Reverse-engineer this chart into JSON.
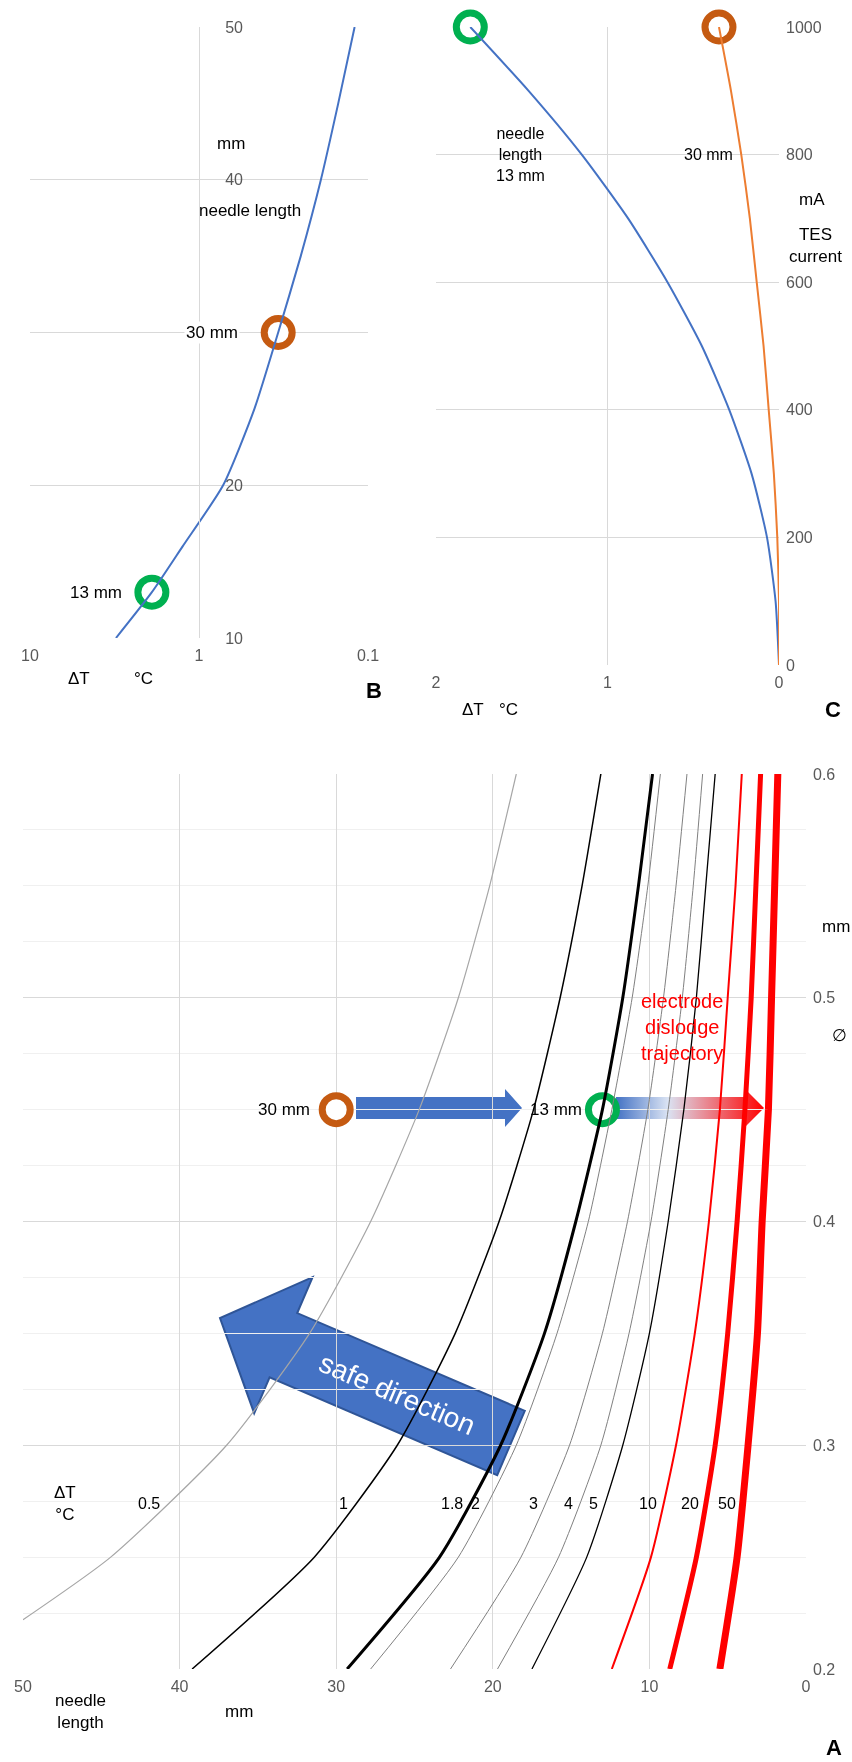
{
  "chart_data": [
    {
      "type": "line",
      "title": "A",
      "xlabel": "needle\nlength",
      "ylabel": "mm",
      "legend_title": "ΔT\n°C",
      "xlim": [
        50,
        0
      ],
      "xticks": [
        0,
        10,
        20,
        30,
        40,
        50
      ],
      "ylim": [
        0.2,
        0.6
      ],
      "yticks": [
        0.2,
        0.3,
        0.4,
        0.5,
        0.6
      ],
      "grid": true,
      "series": [
        {
          "name": "0.5",
          "color": "#a6a6a6",
          "x": [
            50,
            44.4,
            37,
            31.7,
            27.8,
            24.7,
            22.2,
            20.2,
            18.5
          ],
          "values": [
            0.222,
            0.25,
            0.3,
            0.35,
            0.4,
            0.45,
            0.5,
            0.55,
            0.6
          ]
        },
        {
          "name": "1",
          "color": "#000000",
          "x": [
            39.2,
            31.4,
            26.1,
            22.4,
            19.6,
            17.4,
            15.7,
            14.3,
            13.1
          ],
          "values": [
            0.2,
            0.25,
            0.3,
            0.35,
            0.4,
            0.45,
            0.5,
            0.55,
            0.6
          ]
        },
        {
          "name": "1.8",
          "color": "#000000",
          "x": [
            29.3,
            23.4,
            19.5,
            16.7,
            14.7,
            13,
            11.7,
            10.7,
            9.8
          ],
          "values": [
            0.2,
            0.25,
            0.3,
            0.35,
            0.4,
            0.45,
            0.5,
            0.55,
            0.6
          ]
        },
        {
          "name": "2",
          "color": "#808080",
          "x": [
            27.8,
            22.2,
            18.5,
            15.9,
            13.9,
            12.4,
            11.1,
            10.1,
            9.3
          ],
          "values": [
            0.2,
            0.25,
            0.3,
            0.35,
            0.4,
            0.45,
            0.5,
            0.55,
            0.6
          ]
        },
        {
          "name": "3",
          "color": "#808080",
          "x": [
            22.7,
            18.2,
            15.1,
            13,
            11.4,
            10.1,
            9.1,
            8.3,
            7.6
          ],
          "values": [
            0.2,
            0.25,
            0.3,
            0.35,
            0.4,
            0.45,
            0.5,
            0.55,
            0.6
          ]
        },
        {
          "name": "4",
          "color": "#808080",
          "x": [
            19.7,
            15.8,
            13.1,
            11.3,
            9.9,
            8.8,
            7.9,
            7.2,
            6.6
          ],
          "values": [
            0.2,
            0.25,
            0.3,
            0.35,
            0.4,
            0.45,
            0.5,
            0.55,
            0.6
          ]
        },
        {
          "name": "5",
          "color": "#000000",
          "x": [
            17.5,
            14,
            11.7,
            10,
            8.8,
            7.8,
            7,
            6.4,
            5.8
          ],
          "values": [
            0.2,
            0.25,
            0.3,
            0.35,
            0.4,
            0.45,
            0.5,
            0.55,
            0.6
          ]
        },
        {
          "name": "10",
          "color": "#ff0000",
          "x": [
            12.4,
            9.9,
            8.3,
            7.1,
            6.2,
            5.5,
            5,
            4.5,
            4.1
          ],
          "values": [
            0.2,
            0.25,
            0.3,
            0.35,
            0.4,
            0.45,
            0.5,
            0.55,
            0.6
          ]
        },
        {
          "name": "20",
          "color": "#ff0000",
          "x": [
            8.7,
            7,
            5.8,
            5,
            4.4,
            3.9,
            3.5,
            3.2,
            2.9
          ],
          "values": [
            0.2,
            0.25,
            0.3,
            0.35,
            0.4,
            0.45,
            0.5,
            0.55,
            0.6
          ]
        },
        {
          "name": "50",
          "color": "#ff0000",
          "x": [
            5.5,
            4.4,
            3.7,
            3.1,
            2.8,
            2.4,
            2.2,
            2,
            1.8
          ],
          "values": [
            0.2,
            0.25,
            0.3,
            0.35,
            0.4,
            0.45,
            0.5,
            0.55,
            0.6
          ]
        },
        {
          "type": "scatter",
          "color": "#c55a11",
          "x": [
            30
          ],
          "values": [
            0.45
          ]
        },
        {
          "type": "scatter",
          "color": "#00b050",
          "x": [
            13
          ],
          "values": [
            0.45
          ]
        }
      ],
      "annotations": [
        "∅",
        "mm",
        {
          "text": "30 mm",
          "x": 30,
          "y": 0.45
        },
        {
          "text": "13 mm",
          "x": 13,
          "y": 0.45
        },
        "electrode\ndislodge\ntrajectory",
        "safe direction"
      ]
    },
    {
      "type": "line",
      "title": "B",
      "xlabel": "ΔT\n°C",
      "ylabel": "needle length",
      "log": "x",
      "xlim": [
        10,
        0.1
      ],
      "xticks": [
        0.1,
        1,
        10
      ],
      "ylim": [
        10,
        50
      ],
      "yticks": [
        10,
        20,
        {
          "value": 30,
          "label": null
        },
        40,
        50
      ],
      "grid": true,
      "series": [
        {
          "color": "#4472c4",
          "x": [
            3.1,
            1.9,
            1.25,
            0.72,
            0.47,
            0.34,
            0.25,
            0.19,
            0.15,
            0.12
          ],
          "values": [
            10,
            13,
            16,
            20,
            25,
            30,
            35,
            40,
            45,
            50
          ]
        },
        {
          "type": "scatter",
          "color": "#00b050",
          "x": [
            1.9
          ],
          "values": [
            13
          ]
        },
        {
          "type": "scatter",
          "color": "#c55a11",
          "x": [
            0.34
          ],
          "values": [
            30
          ]
        }
      ],
      "annotations": [
        "mm",
        {
          "text": "30 mm",
          "x": 0.34,
          "y": 30
        },
        {
          "text": "13 mm",
          "x": 1.9,
          "y": 13
        }
      ]
    },
    {
      "type": "line",
      "title": "C",
      "xlabel": "ΔT\n°C",
      "ylabel": "TES current",
      "xlim": [
        2,
        0
      ],
      "xticks": [
        0,
        1,
        2
      ],
      "ylim": [
        0,
        1000
      ],
      "yticks": [
        0,
        200,
        400,
        600,
        800,
        1000
      ],
      "grid": true,
      "series": [
        {
          "name": "needle\nlength\n13 mm",
          "color": "#4472c4",
          "x": [
            0,
            0.02,
            0.07,
            0.16,
            0.29,
            0.45,
            0.65,
            0.88,
            1.15,
            1.46,
            1.8
          ],
          "values": [
            0,
            100,
            200,
            300,
            400,
            500,
            600,
            700,
            800,
            900,
            1000
          ]
        },
        {
          "name": "30 mm",
          "color": "#ed7d31",
          "x": [
            0,
            0,
            0.01,
            0.03,
            0.06,
            0.09,
            0.13,
            0.17,
            0.22,
            0.28,
            0.35
          ],
          "values": [
            0,
            100,
            200,
            300,
            400,
            500,
            600,
            700,
            800,
            900,
            1000
          ]
        },
        {
          "type": "scatter",
          "color": "#00b050",
          "x": [
            1.8
          ],
          "values": [
            1000
          ]
        },
        {
          "type": "scatter",
          "color": "#c55a11",
          "x": [
            0.35
          ],
          "values": [
            1000
          ]
        }
      ],
      "annotations": [
        "mA"
      ]
    }
  ]
}
